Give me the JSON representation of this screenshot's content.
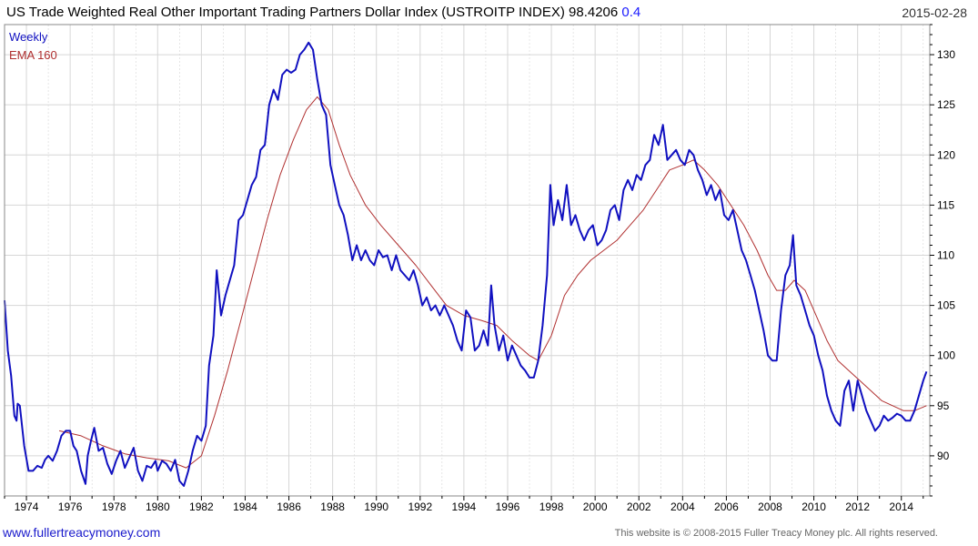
{
  "header": {
    "title": "US Trade Weighted Real Other Important Trading Partners Dollar Index  (USTROITP INDEX) 98.4206",
    "change": "0.4",
    "date": "2015-02-28"
  },
  "footer": {
    "site": "www.fullertreacymoney.com",
    "copyright": "This website is © 2008-2015 Fuller Treacy Money plc. All rights reserved."
  },
  "colors": {
    "weekly": "#1010c0",
    "ema": "#b03030",
    "grid": "#d6d6d6",
    "axis": "#000000"
  },
  "chart_data": {
    "type": "line",
    "xlim": [
      1973,
      2015.3
    ],
    "ylim": [
      86,
      133
    ],
    "x_ticks": [
      1974,
      1976,
      1978,
      1980,
      1982,
      1984,
      1986,
      1988,
      1990,
      1992,
      1994,
      1996,
      1998,
      2000,
      2002,
      2004,
      2006,
      2008,
      2010,
      2012,
      2014
    ],
    "y_ticks": [
      90,
      95,
      100,
      105,
      110,
      115,
      120,
      125,
      130
    ],
    "grid": true,
    "legend": "top-left",
    "series": [
      {
        "name": "Weekly",
        "points": [
          [
            1973.0,
            105.5
          ],
          [
            1973.15,
            100.5
          ],
          [
            1973.3,
            98
          ],
          [
            1973.45,
            94
          ],
          [
            1973.55,
            93.5
          ],
          [
            1973.6,
            95.2
          ],
          [
            1973.7,
            95
          ],
          [
            1973.9,
            91
          ],
          [
            1974.1,
            88.5
          ],
          [
            1974.3,
            88.5
          ],
          [
            1974.5,
            89
          ],
          [
            1974.7,
            88.8
          ],
          [
            1974.85,
            89.6
          ],
          [
            1975.0,
            90
          ],
          [
            1975.2,
            89.5
          ],
          [
            1975.4,
            90.5
          ],
          [
            1975.6,
            92
          ],
          [
            1975.8,
            92.5
          ],
          [
            1976.0,
            92.5
          ],
          [
            1976.15,
            91
          ],
          [
            1976.3,
            90.5
          ],
          [
            1976.5,
            88.5
          ],
          [
            1976.7,
            87.2
          ],
          [
            1976.8,
            90
          ],
          [
            1976.95,
            91.5
          ],
          [
            1977.1,
            92.8
          ],
          [
            1977.3,
            90.5
          ],
          [
            1977.5,
            90.8
          ],
          [
            1977.7,
            89.2
          ],
          [
            1977.9,
            88.2
          ],
          [
            1978.1,
            89.5
          ],
          [
            1978.3,
            90.5
          ],
          [
            1978.5,
            88.8
          ],
          [
            1978.7,
            89.8
          ],
          [
            1978.9,
            90.8
          ],
          [
            1979.1,
            88.5
          ],
          [
            1979.3,
            87.5
          ],
          [
            1979.5,
            89
          ],
          [
            1979.7,
            88.8
          ],
          [
            1979.9,
            89.5
          ],
          [
            1980.0,
            88.5
          ],
          [
            1980.2,
            89.5
          ],
          [
            1980.4,
            89.2
          ],
          [
            1980.6,
            88.5
          ],
          [
            1980.8,
            89.6
          ],
          [
            1981.0,
            87.5
          ],
          [
            1981.2,
            87
          ],
          [
            1981.4,
            88.5
          ],
          [
            1981.6,
            90.5
          ],
          [
            1981.8,
            92
          ],
          [
            1982.0,
            91.5
          ],
          [
            1982.2,
            93
          ],
          [
            1982.35,
            99
          ],
          [
            1982.55,
            102
          ],
          [
            1982.7,
            108.5
          ],
          [
            1982.9,
            104
          ],
          [
            1983.1,
            106
          ],
          [
            1983.3,
            107.5
          ],
          [
            1983.5,
            109
          ],
          [
            1983.7,
            113.5
          ],
          [
            1983.9,
            114
          ],
          [
            1984.1,
            115.5
          ],
          [
            1984.3,
            117
          ],
          [
            1984.5,
            117.8
          ],
          [
            1984.7,
            120.5
          ],
          [
            1984.9,
            121
          ],
          [
            1985.1,
            125
          ],
          [
            1985.3,
            126.5
          ],
          [
            1985.5,
            125.5
          ],
          [
            1985.7,
            128
          ],
          [
            1985.9,
            128.5
          ],
          [
            1986.1,
            128.2
          ],
          [
            1986.3,
            128.5
          ],
          [
            1986.5,
            130
          ],
          [
            1986.7,
            130.5
          ],
          [
            1986.9,
            131.2
          ],
          [
            1987.1,
            130.5
          ],
          [
            1987.3,
            127.5
          ],
          [
            1987.5,
            125
          ],
          [
            1987.7,
            124
          ],
          [
            1987.9,
            119
          ],
          [
            1988.1,
            117
          ],
          [
            1988.3,
            115
          ],
          [
            1988.5,
            114
          ],
          [
            1988.7,
            112
          ],
          [
            1988.9,
            109.5
          ],
          [
            1989.1,
            111
          ],
          [
            1989.3,
            109.5
          ],
          [
            1989.5,
            110.5
          ],
          [
            1989.7,
            109.5
          ],
          [
            1989.9,
            109
          ],
          [
            1990.1,
            110.5
          ],
          [
            1990.3,
            109.8
          ],
          [
            1990.5,
            110
          ],
          [
            1990.7,
            108.5
          ],
          [
            1990.9,
            110
          ],
          [
            1991.1,
            108.5
          ],
          [
            1991.3,
            108
          ],
          [
            1991.5,
            107.5
          ],
          [
            1991.7,
            108.5
          ],
          [
            1991.9,
            107
          ],
          [
            1992.1,
            105
          ],
          [
            1992.3,
            105.8
          ],
          [
            1992.5,
            104.5
          ],
          [
            1992.7,
            105
          ],
          [
            1992.9,
            104
          ],
          [
            1993.1,
            105
          ],
          [
            1993.3,
            104
          ],
          [
            1993.5,
            103
          ],
          [
            1993.7,
            101.5
          ],
          [
            1993.9,
            100.5
          ],
          [
            1994.1,
            104.5
          ],
          [
            1994.3,
            103.8
          ],
          [
            1994.5,
            100.5
          ],
          [
            1994.7,
            101
          ],
          [
            1994.9,
            102.5
          ],
          [
            1995.1,
            101
          ],
          [
            1995.25,
            107
          ],
          [
            1995.4,
            103
          ],
          [
            1995.6,
            100.5
          ],
          [
            1995.8,
            102
          ],
          [
            1996.0,
            99.5
          ],
          [
            1996.2,
            101
          ],
          [
            1996.4,
            100
          ],
          [
            1996.6,
            99
          ],
          [
            1996.8,
            98.5
          ],
          [
            1997.0,
            97.8
          ],
          [
            1997.2,
            97.8
          ],
          [
            1997.4,
            99.5
          ],
          [
            1997.6,
            103
          ],
          [
            1997.8,
            108
          ],
          [
            1997.95,
            117
          ],
          [
            1998.1,
            113
          ],
          [
            1998.3,
            115.5
          ],
          [
            1998.5,
            113.5
          ],
          [
            1998.7,
            117
          ],
          [
            1998.9,
            113
          ],
          [
            1999.1,
            114
          ],
          [
            1999.3,
            112.5
          ],
          [
            1999.5,
            111.5
          ],
          [
            1999.7,
            112.5
          ],
          [
            1999.9,
            113
          ],
          [
            2000.1,
            111
          ],
          [
            2000.3,
            111.5
          ],
          [
            2000.5,
            112.5
          ],
          [
            2000.7,
            114.5
          ],
          [
            2000.9,
            115
          ],
          [
            2001.1,
            113.5
          ],
          [
            2001.3,
            116.5
          ],
          [
            2001.5,
            117.5
          ],
          [
            2001.7,
            116.5
          ],
          [
            2001.9,
            118
          ],
          [
            2002.1,
            117.5
          ],
          [
            2002.3,
            119
          ],
          [
            2002.5,
            119.5
          ],
          [
            2002.7,
            122
          ],
          [
            2002.9,
            121
          ],
          [
            2003.1,
            123
          ],
          [
            2003.3,
            119.5
          ],
          [
            2003.5,
            120
          ],
          [
            2003.7,
            120.5
          ],
          [
            2003.9,
            119.5
          ],
          [
            2004.1,
            119
          ],
          [
            2004.3,
            120.5
          ],
          [
            2004.5,
            120
          ],
          [
            2004.7,
            118.5
          ],
          [
            2004.9,
            117.5
          ],
          [
            2005.1,
            116
          ],
          [
            2005.3,
            117
          ],
          [
            2005.5,
            115.5
          ],
          [
            2005.7,
            116.5
          ],
          [
            2005.9,
            114
          ],
          [
            2006.1,
            113.5
          ],
          [
            2006.3,
            114.5
          ],
          [
            2006.5,
            112.5
          ],
          [
            2006.7,
            110.5
          ],
          [
            2006.9,
            109.5
          ],
          [
            2007.1,
            108
          ],
          [
            2007.3,
            106.5
          ],
          [
            2007.5,
            104.5
          ],
          [
            2007.7,
            102.5
          ],
          [
            2007.9,
            100
          ],
          [
            2008.1,
            99.5
          ],
          [
            2008.3,
            99.5
          ],
          [
            2008.5,
            104.5
          ],
          [
            2008.7,
            108
          ],
          [
            2008.9,
            109
          ],
          [
            2009.05,
            112
          ],
          [
            2009.2,
            107
          ],
          [
            2009.4,
            106
          ],
          [
            2009.6,
            104.5
          ],
          [
            2009.8,
            103
          ],
          [
            2010.0,
            102
          ],
          [
            2010.2,
            100
          ],
          [
            2010.4,
            98.5
          ],
          [
            2010.6,
            96
          ],
          [
            2010.8,
            94.5
          ],
          [
            2011.0,
            93.5
          ],
          [
            2011.2,
            93
          ],
          [
            2011.4,
            96.5
          ],
          [
            2011.6,
            97.5
          ],
          [
            2011.8,
            94.5
          ],
          [
            2012.0,
            97.5
          ],
          [
            2012.2,
            96
          ],
          [
            2012.4,
            94.5
          ],
          [
            2012.6,
            93.5
          ],
          [
            2012.8,
            92.5
          ],
          [
            2013.0,
            93
          ],
          [
            2013.2,
            94
          ],
          [
            2013.4,
            93.5
          ],
          [
            2013.6,
            93.8
          ],
          [
            2013.8,
            94.2
          ],
          [
            2014.0,
            94
          ],
          [
            2014.2,
            93.5
          ],
          [
            2014.4,
            93.5
          ],
          [
            2014.6,
            94.5
          ],
          [
            2014.8,
            96
          ],
          [
            2015.0,
            97.5
          ],
          [
            2015.15,
            98.4
          ]
        ]
      },
      {
        "name": "EMA 160",
        "points": [
          [
            1975.5,
            92.5
          ],
          [
            1976.5,
            92
          ],
          [
            1977.5,
            91
          ],
          [
            1978.5,
            90.2
          ],
          [
            1979.5,
            89.8
          ],
          [
            1980.5,
            89.5
          ],
          [
            1981.3,
            88.8
          ],
          [
            1982.0,
            90
          ],
          [
            1982.6,
            94
          ],
          [
            1983.2,
            98.5
          ],
          [
            1983.8,
            103.5
          ],
          [
            1984.4,
            108.5
          ],
          [
            1985.0,
            113.5
          ],
          [
            1985.6,
            118
          ],
          [
            1986.2,
            121.5
          ],
          [
            1986.8,
            124.5
          ],
          [
            1987.3,
            125.8
          ],
          [
            1987.8,
            124.5
          ],
          [
            1988.3,
            121
          ],
          [
            1988.8,
            118
          ],
          [
            1989.5,
            115
          ],
          [
            1990.2,
            113
          ],
          [
            1991.0,
            111
          ],
          [
            1991.8,
            109
          ],
          [
            1992.5,
            107
          ],
          [
            1993.2,
            105
          ],
          [
            1994.0,
            104
          ],
          [
            1994.8,
            103.5
          ],
          [
            1995.5,
            103
          ],
          [
            1996.2,
            101.5
          ],
          [
            1997.0,
            100
          ],
          [
            1997.4,
            99.5
          ],
          [
            1998.0,
            102
          ],
          [
            1998.6,
            106
          ],
          [
            1999.2,
            108
          ],
          [
            1999.8,
            109.5
          ],
          [
            2000.4,
            110.5
          ],
          [
            2001.0,
            111.5
          ],
          [
            2001.6,
            113
          ],
          [
            2002.2,
            114.5
          ],
          [
            2002.8,
            116.5
          ],
          [
            2003.4,
            118.5
          ],
          [
            2004.0,
            119
          ],
          [
            2004.5,
            119.5
          ],
          [
            2005.0,
            118.5
          ],
          [
            2005.6,
            117
          ],
          [
            2006.2,
            115
          ],
          [
            2006.8,
            113
          ],
          [
            2007.4,
            110.5
          ],
          [
            2007.9,
            108
          ],
          [
            2008.3,
            106.5
          ],
          [
            2008.7,
            106.5
          ],
          [
            2009.1,
            107.5
          ],
          [
            2009.6,
            106.5
          ],
          [
            2010.1,
            104
          ],
          [
            2010.6,
            101.5
          ],
          [
            2011.1,
            99.5
          ],
          [
            2011.6,
            98.5
          ],
          [
            2012.1,
            97.5
          ],
          [
            2012.6,
            96.5
          ],
          [
            2013.1,
            95.5
          ],
          [
            2013.6,
            95
          ],
          [
            2014.1,
            94.5
          ],
          [
            2014.6,
            94.5
          ],
          [
            2015.15,
            95
          ]
        ]
      }
    ]
  }
}
